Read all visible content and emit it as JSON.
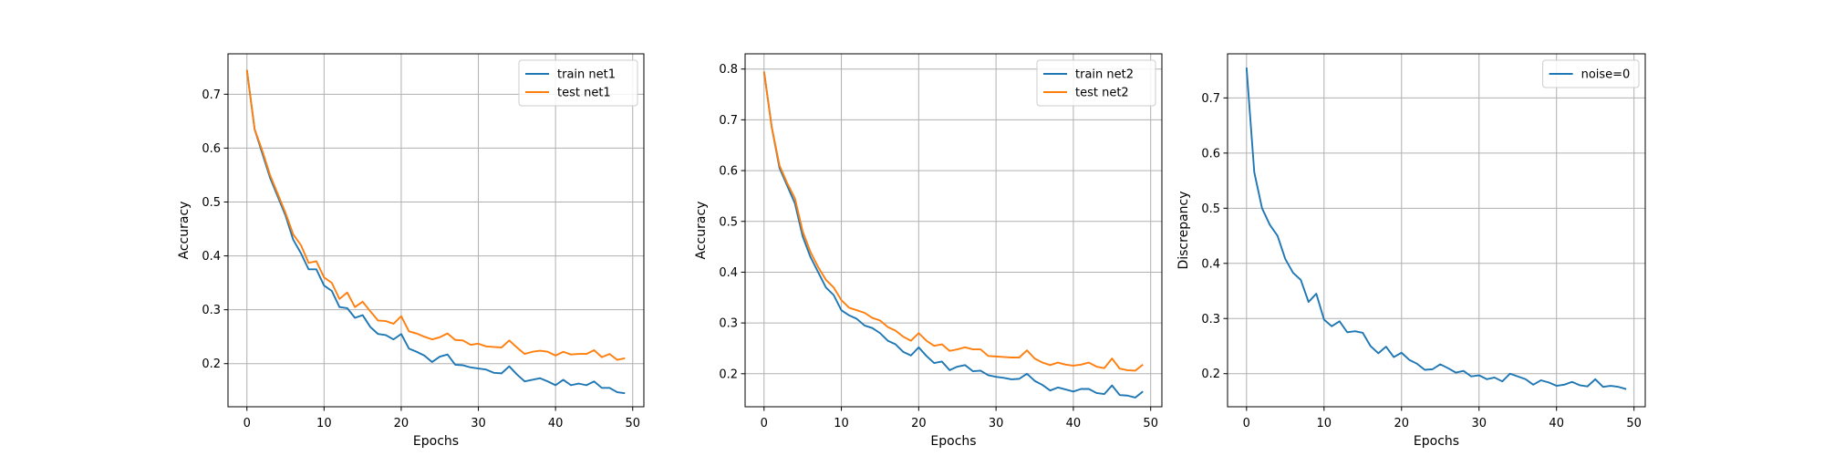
{
  "colors": {
    "blue": "#1f77b4",
    "orange": "#ff7f0e",
    "grid": "#b0b0b0",
    "axes": "#000000"
  },
  "chart_data": [
    {
      "type": "line",
      "title": "",
      "xlabel": "Epochs",
      "ylabel": "Accuracy",
      "xlim": [
        -2.45,
        51.45
      ],
      "ylim": [
        0.12,
        0.775
      ],
      "xticks": [
        0,
        10,
        20,
        30,
        40,
        50
      ],
      "yticks": [
        0.2,
        0.3,
        0.4,
        0.5,
        0.6,
        0.7
      ],
      "grid": true,
      "legend_position": "top-right",
      "x": [
        0,
        1,
        2,
        3,
        4,
        5,
        6,
        7,
        8,
        9,
        10,
        11,
        12,
        13,
        14,
        15,
        16,
        17,
        18,
        19,
        20,
        21,
        22,
        23,
        24,
        25,
        26,
        27,
        28,
        29,
        30,
        31,
        32,
        33,
        34,
        35,
        36,
        37,
        38,
        39,
        40,
        41,
        42,
        43,
        44,
        45,
        46,
        47,
        48,
        49
      ],
      "series": [
        {
          "name": "train net1",
          "color": "#1f77b4",
          "values": [
            0.745,
            0.635,
            0.59,
            0.545,
            0.51,
            0.475,
            0.43,
            0.405,
            0.375,
            0.375,
            0.345,
            0.335,
            0.305,
            0.303,
            0.285,
            0.29,
            0.268,
            0.255,
            0.253,
            0.245,
            0.255,
            0.228,
            0.222,
            0.215,
            0.203,
            0.213,
            0.217,
            0.198,
            0.197,
            0.193,
            0.191,
            0.189,
            0.183,
            0.182,
            0.195,
            0.18,
            0.167,
            0.17,
            0.173,
            0.167,
            0.16,
            0.17,
            0.16,
            0.163,
            0.16,
            0.167,
            0.155,
            0.155,
            0.147,
            0.145
          ]
        },
        {
          "name": "test net1",
          "color": "#ff7f0e",
          "values": [
            0.745,
            0.635,
            0.595,
            0.55,
            0.515,
            0.48,
            0.44,
            0.42,
            0.387,
            0.39,
            0.36,
            0.35,
            0.32,
            0.332,
            0.305,
            0.315,
            0.297,
            0.28,
            0.279,
            0.274,
            0.288,
            0.26,
            0.256,
            0.25,
            0.245,
            0.249,
            0.256,
            0.244,
            0.243,
            0.235,
            0.237,
            0.232,
            0.231,
            0.23,
            0.243,
            0.23,
            0.218,
            0.222,
            0.224,
            0.222,
            0.215,
            0.222,
            0.217,
            0.218,
            0.218,
            0.225,
            0.212,
            0.218,
            0.207,
            0.21
          ]
        }
      ]
    },
    {
      "type": "line",
      "title": "",
      "xlabel": "Epochs",
      "ylabel": "Accuracy",
      "xlim": [
        -2.45,
        51.45
      ],
      "ylim": [
        0.135,
        0.83
      ],
      "xticks": [
        0,
        10,
        20,
        30,
        40,
        50
      ],
      "yticks": [
        0.2,
        0.3,
        0.4,
        0.5,
        0.6,
        0.7,
        0.8
      ],
      "grid": true,
      "legend_position": "top-right",
      "x": [
        0,
        1,
        2,
        3,
        4,
        5,
        6,
        7,
        8,
        9,
        10,
        11,
        12,
        13,
        14,
        15,
        16,
        17,
        18,
        19,
        20,
        21,
        22,
        23,
        24,
        25,
        26,
        27,
        28,
        29,
        30,
        31,
        32,
        33,
        34,
        35,
        36,
        37,
        38,
        39,
        40,
        41,
        42,
        43,
        44,
        45,
        46,
        47,
        48,
        49
      ],
      "series": [
        {
          "name": "train net2",
          "color": "#1f77b4",
          "values": [
            0.795,
            0.685,
            0.605,
            0.57,
            0.535,
            0.47,
            0.43,
            0.4,
            0.37,
            0.355,
            0.325,
            0.315,
            0.308,
            0.295,
            0.29,
            0.28,
            0.265,
            0.258,
            0.243,
            0.236,
            0.252,
            0.235,
            0.221,
            0.224,
            0.207,
            0.214,
            0.217,
            0.205,
            0.206,
            0.197,
            0.194,
            0.192,
            0.189,
            0.19,
            0.2,
            0.186,
            0.178,
            0.167,
            0.173,
            0.169,
            0.165,
            0.17,
            0.17,
            0.162,
            0.16,
            0.177,
            0.158,
            0.157,
            0.153,
            0.165
          ]
        },
        {
          "name": "test net2",
          "color": "#ff7f0e",
          "values": [
            0.795,
            0.685,
            0.61,
            0.575,
            0.545,
            0.48,
            0.44,
            0.41,
            0.385,
            0.37,
            0.345,
            0.33,
            0.325,
            0.32,
            0.31,
            0.305,
            0.292,
            0.285,
            0.273,
            0.265,
            0.28,
            0.265,
            0.255,
            0.258,
            0.245,
            0.248,
            0.252,
            0.248,
            0.248,
            0.235,
            0.234,
            0.233,
            0.232,
            0.232,
            0.246,
            0.23,
            0.222,
            0.217,
            0.222,
            0.218,
            0.216,
            0.218,
            0.222,
            0.214,
            0.211,
            0.23,
            0.21,
            0.207,
            0.206,
            0.218
          ]
        }
      ]
    },
    {
      "type": "line",
      "title": "",
      "xlabel": "Epochs",
      "ylabel": "Discrepancy",
      "xlim": [
        -2.45,
        51.45
      ],
      "ylim": [
        0.14,
        0.78
      ],
      "xticks": [
        0,
        10,
        20,
        30,
        40,
        50
      ],
      "yticks": [
        0.2,
        0.3,
        0.4,
        0.5,
        0.6,
        0.7
      ],
      "grid": true,
      "legend_position": "top-right",
      "x": [
        0,
        1,
        2,
        3,
        4,
        5,
        6,
        7,
        8,
        9,
        10,
        11,
        12,
        13,
        14,
        15,
        16,
        17,
        18,
        19,
        20,
        21,
        22,
        23,
        24,
        25,
        26,
        27,
        28,
        29,
        30,
        31,
        32,
        33,
        34,
        35,
        36,
        37,
        38,
        39,
        40,
        41,
        42,
        43,
        44,
        45,
        46,
        47,
        48,
        49
      ],
      "series": [
        {
          "name": "noise=0",
          "color": "#1f77b4",
          "values": [
            0.755,
            0.565,
            0.5,
            0.47,
            0.45,
            0.408,
            0.383,
            0.37,
            0.33,
            0.345,
            0.298,
            0.286,
            0.295,
            0.275,
            0.277,
            0.274,
            0.25,
            0.237,
            0.249,
            0.23,
            0.238,
            0.225,
            0.218,
            0.207,
            0.208,
            0.217,
            0.21,
            0.202,
            0.205,
            0.195,
            0.197,
            0.19,
            0.193,
            0.186,
            0.2,
            0.195,
            0.19,
            0.18,
            0.188,
            0.184,
            0.178,
            0.18,
            0.185,
            0.179,
            0.177,
            0.19,
            0.176,
            0.178,
            0.176,
            0.172
          ]
        }
      ]
    }
  ]
}
